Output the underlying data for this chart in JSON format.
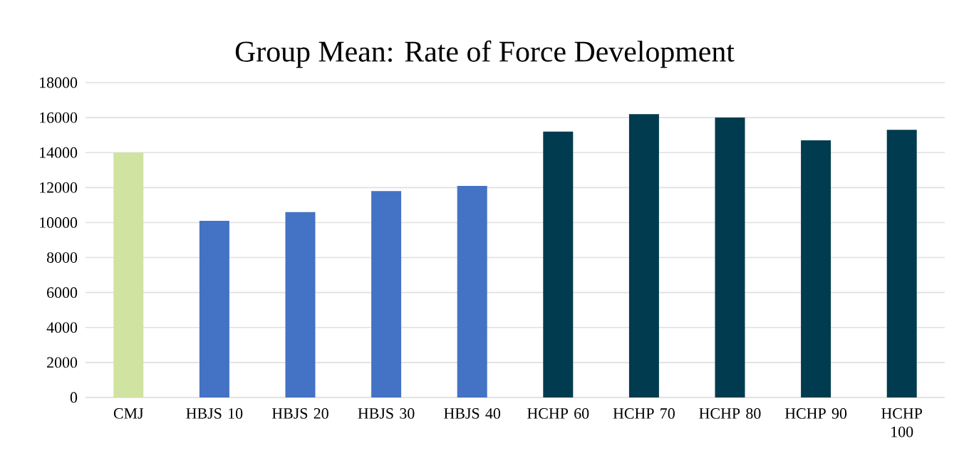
{
  "chart_data": {
    "type": "bar",
    "title": "Group Mean: Rate of Force Development",
    "categories": [
      "CMJ",
      "HBJS 10",
      "HBJS 20",
      "HBJS 30",
      "HBJS 40",
      "HCHP 60",
      "HCHP 70",
      "HCHP 80",
      "HCHP 90",
      "HCHP 100"
    ],
    "values": [
      14000,
      10100,
      10600,
      11800,
      12100,
      15200,
      16200,
      16000,
      14700,
      15300
    ],
    "colors": [
      "#d0e3a0",
      "#4472c4",
      "#4472c4",
      "#4472c4",
      "#4472c4",
      "#003b4f",
      "#003b4f",
      "#003b4f",
      "#003b4f",
      "#003b4f"
    ],
    "ylim": [
      0,
      18000
    ],
    "yticks": [
      0,
      2000,
      4000,
      6000,
      8000,
      10000,
      12000,
      14000,
      16000,
      18000
    ],
    "grid": "y"
  }
}
